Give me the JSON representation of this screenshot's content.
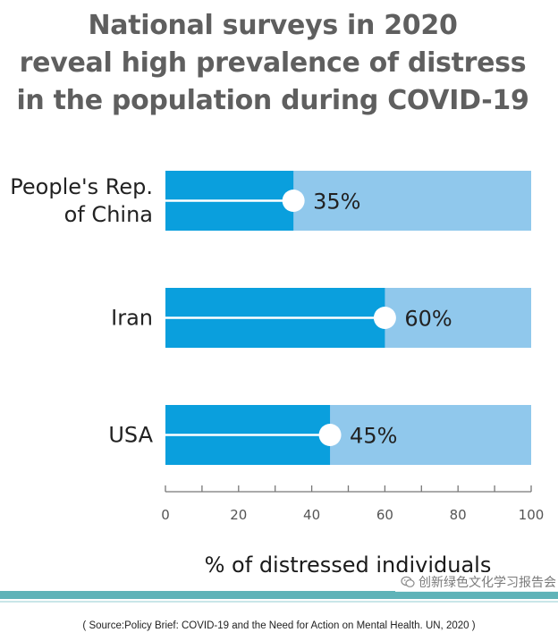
{
  "title_lines": [
    "National surveys in 2020",
    "reveal high prevalence of distress",
    "in the population during COVID-19"
  ],
  "colors": {
    "bar_fill": "#0a9fdd",
    "bar_track": "#90c8ec",
    "marker": "#ffffff",
    "title": "#5f5f5f",
    "teal_band": "#5fb3b8"
  },
  "chart_data": {
    "type": "bar",
    "orientation": "horizontal",
    "categories": [
      [
        "People's Rep.",
        "of China"
      ],
      [
        "Iran"
      ],
      [
        "USA"
      ]
    ],
    "values": [
      35,
      60,
      45
    ],
    "value_labels": [
      "35%",
      "60%",
      "45%"
    ],
    "xlim": [
      0,
      100
    ],
    "ticks": [
      0,
      20,
      40,
      60,
      80,
      100
    ],
    "xlabel": "% of distressed individuals",
    "ylabel": "",
    "grid": false,
    "legend": "none"
  },
  "watermark": {
    "text": "创新绿色文化学习报告会",
    "icon": "wechat-icon"
  },
  "source": "( Source:Policy Brief: COVID-19 and the Need for Action on Mental Health. UN, 2020 )"
}
